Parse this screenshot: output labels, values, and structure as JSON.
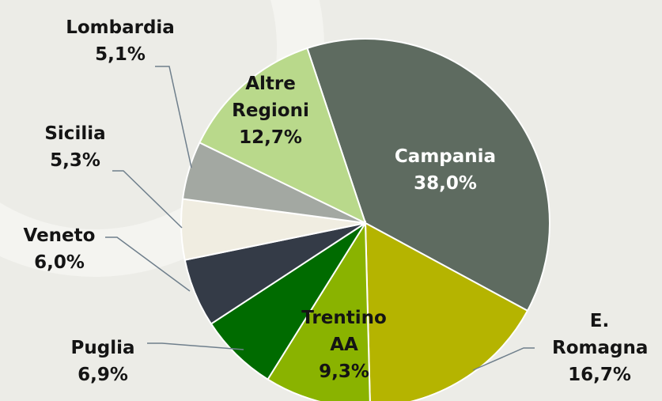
{
  "chart_data": {
    "type": "pie",
    "categories": [
      "Campania",
      "E. Romagna",
      "Trentino AA",
      "Puglia",
      "Veneto",
      "Sicilia",
      "Lombardia",
      "Altre Regioni"
    ],
    "values": [
      38.0,
      16.7,
      9.3,
      6.9,
      6.0,
      5.3,
      5.1,
      12.7
    ],
    "value_labels": [
      "38,0%",
      "16,7%",
      "9,3%",
      "6,9%",
      "6,0%",
      "5,3%",
      "5,1%",
      "12,7%"
    ],
    "colors": [
      "#5e6b60",
      "#b5b400",
      "#8ab300",
      "#006b00",
      "#343b47",
      "#f0ede1",
      "#a3a8a2",
      "#b9d98b"
    ]
  }
}
